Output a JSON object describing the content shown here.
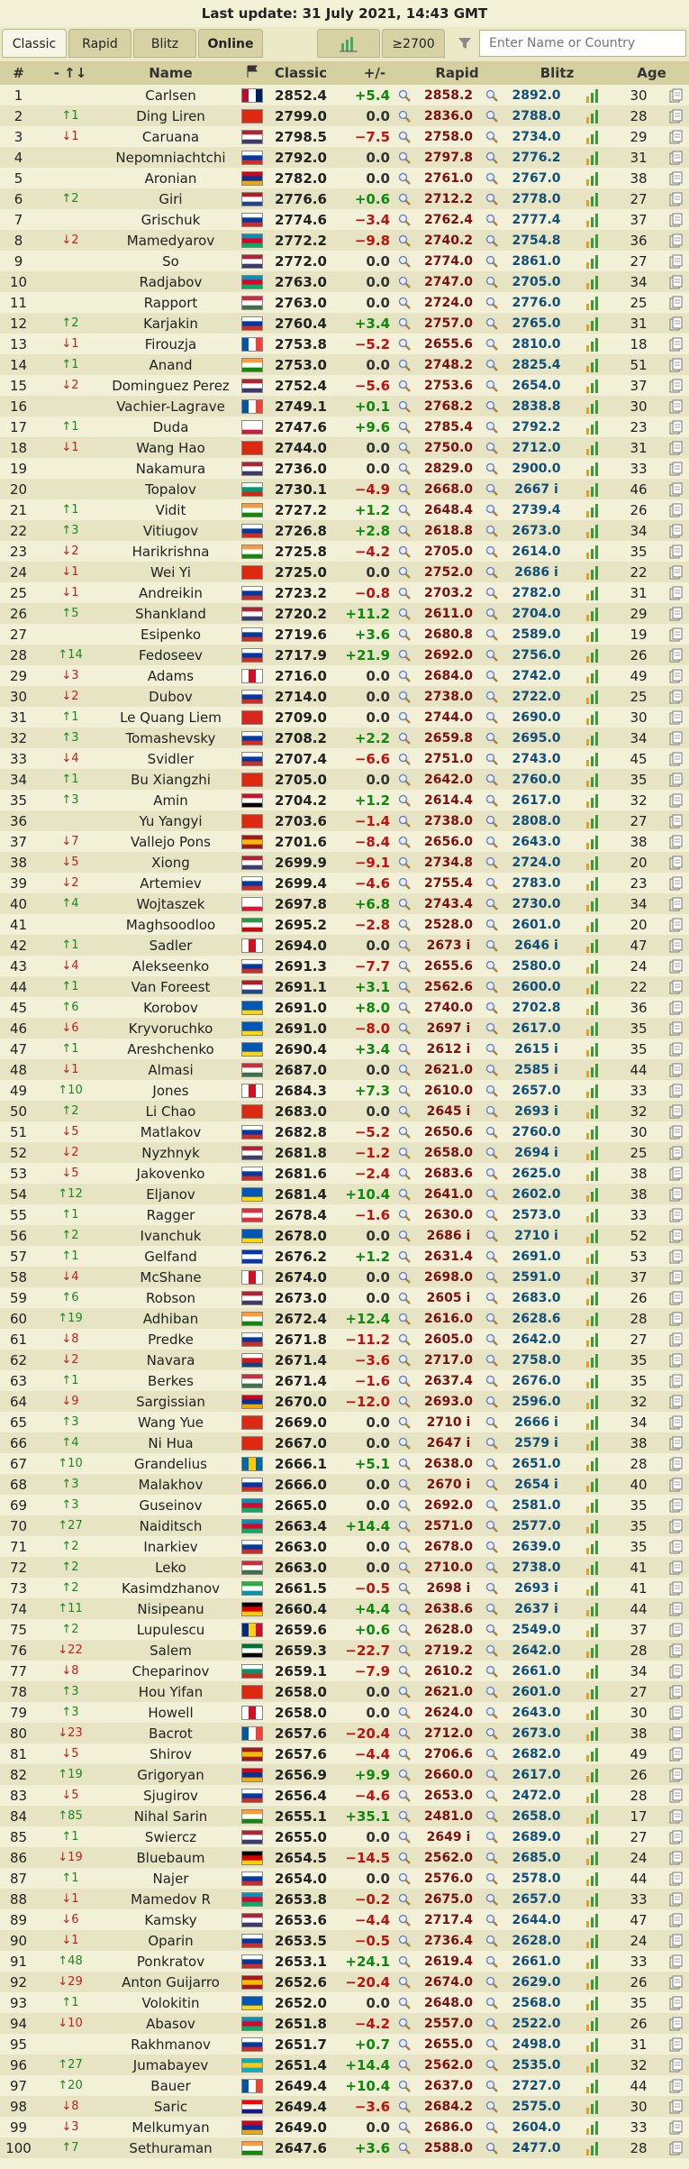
{
  "header": {
    "title": "Last update: 31 July 2021, 14:43 GMT",
    "tabs": [
      "Classic",
      "Rapid",
      "Blitz",
      "Online"
    ],
    "filter_button": "≥2700",
    "search_placeholder": "Enter Name or Country"
  },
  "table": {
    "columns": [
      "#",
      "- ↑↓",
      "Name",
      "Classic",
      "+/-",
      "Rapid",
      "Blitz",
      "Age"
    ],
    "rows": [
      [
        1,
        null,
        "Carlsen",
        "2852.4",
        "+5.4",
        "2858.2",
        "2892.0",
        30
      ],
      [
        2,
        "↑1",
        "Ding Liren",
        "2799.0",
        "0.0",
        "2836.0",
        "2788.0",
        28
      ],
      [
        3,
        "↓1",
        "Caruana",
        "2798.5",
        "−7.5",
        "2758.0",
        "2734.0",
        29
      ],
      [
        4,
        null,
        "Nepomniachtchi",
        "2792.0",
        "0.0",
        "2797.8",
        "2776.2",
        31
      ],
      [
        5,
        null,
        "Aronian",
        "2782.0",
        "0.0",
        "2761.0",
        "2767.0",
        38
      ],
      [
        6,
        "↑2",
        "Giri",
        "2776.6",
        "+0.6",
        "2712.2",
        "2778.0",
        27
      ],
      [
        7,
        null,
        "Grischuk",
        "2774.6",
        "−3.4",
        "2762.4",
        "2777.4",
        37
      ],
      [
        8,
        "↓2",
        "Mamedyarov",
        "2772.2",
        "−9.8",
        "2740.2",
        "2754.8",
        36
      ],
      [
        9,
        null,
        "So",
        "2772.0",
        "0.0",
        "2774.0",
        "2861.0",
        27
      ],
      [
        10,
        null,
        "Radjabov",
        "2763.0",
        "0.0",
        "2747.0",
        "2705.0",
        34
      ],
      [
        11,
        null,
        "Rapport",
        "2763.0",
        "0.0",
        "2724.0",
        "2776.0",
        25
      ],
      [
        12,
        "↑2",
        "Karjakin",
        "2760.4",
        "+3.4",
        "2757.0",
        "2765.0",
        31
      ],
      [
        13,
        "↓1",
        "Firouzja",
        "2753.8",
        "−5.2",
        "2655.6",
        "2810.0",
        18
      ],
      [
        14,
        "↑1",
        "Anand",
        "2753.0",
        "0.0",
        "2748.2",
        "2825.4",
        51
      ],
      [
        15,
        "↓2",
        "Dominguez Perez",
        "2752.4",
        "−5.6",
        "2753.6",
        "2654.0",
        37
      ],
      [
        16,
        null,
        "Vachier-Lagrave",
        "2749.1",
        "+0.1",
        "2768.2",
        "2838.8",
        30
      ],
      [
        17,
        "↑1",
        "Duda",
        "2747.6",
        "+9.6",
        "2785.4",
        "2792.2",
        23
      ],
      [
        18,
        "↓1",
        "Wang Hao",
        "2744.0",
        "0.0",
        "2750.0",
        "2712.0",
        31
      ],
      [
        19,
        null,
        "Nakamura",
        "2736.0",
        "0.0",
        "2829.0",
        "2900.0",
        33
      ],
      [
        20,
        null,
        "Topalov",
        "2730.1",
        "−4.9",
        "2668.0",
        "2667 i",
        46
      ],
      [
        21,
        "↑1",
        "Vidit",
        "2727.2",
        "+1.2",
        "2648.4",
        "2739.4",
        26
      ],
      [
        22,
        "↑3",
        "Vitiugov",
        "2726.8",
        "+2.8",
        "2618.8",
        "2673.0",
        34
      ],
      [
        23,
        "↓2",
        "Harikrishna",
        "2725.8",
        "−4.2",
        "2705.0",
        "2614.0",
        35
      ],
      [
        24,
        "↓1",
        "Wei Yi",
        "2725.0",
        "0.0",
        "2752.0",
        "2686 i",
        22
      ],
      [
        25,
        "↓1",
        "Andreikin",
        "2723.2",
        "−0.8",
        "2703.2",
        "2782.0",
        31
      ],
      [
        26,
        "↑5",
        "Shankland",
        "2720.2",
        "+11.2",
        "2611.0",
        "2704.0",
        29
      ],
      [
        27,
        null,
        "Esipenko",
        "2719.6",
        "+3.6",
        "2680.8",
        "2589.0",
        19
      ],
      [
        28,
        "↑14",
        "Fedoseev",
        "2717.9",
        "+21.9",
        "2692.0",
        "2756.0",
        26
      ],
      [
        29,
        "↓3",
        "Adams",
        "2716.0",
        "0.0",
        "2684.0",
        "2742.0",
        49
      ],
      [
        30,
        "↓2",
        "Dubov",
        "2714.0",
        "0.0",
        "2738.0",
        "2722.0",
        25
      ],
      [
        31,
        "↑1",
        "Le Quang Liem",
        "2709.0",
        "0.0",
        "2744.0",
        "2690.0",
        30
      ],
      [
        32,
        "↑3",
        "Tomashevsky",
        "2708.2",
        "+2.2",
        "2659.8",
        "2695.0",
        34
      ],
      [
        33,
        "↓4",
        "Svidler",
        "2707.4",
        "−6.6",
        "2751.0",
        "2743.0",
        45
      ],
      [
        34,
        "↑1",
        "Bu Xiangzhi",
        "2705.0",
        "0.0",
        "2642.0",
        "2760.0",
        35
      ],
      [
        35,
        "↑3",
        "Amin",
        "2704.2",
        "+1.2",
        "2614.4",
        "2617.0",
        32
      ],
      [
        36,
        null,
        "Yu Yangyi",
        "2703.6",
        "−1.4",
        "2738.0",
        "2808.0",
        27
      ],
      [
        37,
        "↓7",
        "Vallejo Pons",
        "2701.6",
        "−8.4",
        "2656.0",
        "2643.0",
        38
      ],
      [
        38,
        "↓5",
        "Xiong",
        "2699.9",
        "−9.1",
        "2734.8",
        "2724.0",
        20
      ],
      [
        39,
        "↓2",
        "Artemiev",
        "2699.4",
        "−4.6",
        "2755.4",
        "2783.0",
        23
      ],
      [
        40,
        "↑4",
        "Wojtaszek",
        "2697.8",
        "+6.8",
        "2743.4",
        "2730.0",
        34
      ],
      [
        41,
        null,
        "Maghsoodloo",
        "2695.2",
        "−2.8",
        "2528.0",
        "2601.0",
        20
      ],
      [
        42,
        "↑1",
        "Sadler",
        "2694.0",
        "0.0",
        "2673 i",
        "2646 i",
        47
      ],
      [
        43,
        "↓4",
        "Alekseenko",
        "2691.3",
        "−7.7",
        "2655.6",
        "2580.0",
        24
      ],
      [
        44,
        "↑1",
        "Van Foreest",
        "2691.1",
        "+3.1",
        "2562.6",
        "2600.0",
        22
      ],
      [
        45,
        "↑6",
        "Korobov",
        "2691.0",
        "+8.0",
        "2740.0",
        "2702.8",
        36
      ],
      [
        46,
        "↓6",
        "Kryvoruchko",
        "2691.0",
        "−8.0",
        "2697 i",
        "2617.0",
        35
      ],
      [
        47,
        "↑1",
        "Areshchenko",
        "2690.4",
        "+3.4",
        "2612 i",
        "2615 i",
        35
      ],
      [
        48,
        "↓1",
        "Almasi",
        "2687.0",
        "0.0",
        "2621.0",
        "2585 i",
        44
      ],
      [
        49,
        "↑10",
        "Jones",
        "2684.3",
        "+7.3",
        "2610.0",
        "2657.0",
        33
      ],
      [
        50,
        "↑2",
        "Li Chao",
        "2683.0",
        "0.0",
        "2645 i",
        "2693 i",
        32
      ],
      [
        51,
        "↓5",
        "Matlakov",
        "2682.8",
        "−5.2",
        "2650.6",
        "2760.0",
        30
      ],
      [
        52,
        "↓2",
        "Nyzhnyk",
        "2681.8",
        "−1.2",
        "2658.0",
        "2694 i",
        25
      ],
      [
        53,
        "↓5",
        "Jakovenko",
        "2681.6",
        "−2.4",
        "2683.6",
        "2625.0",
        38
      ],
      [
        54,
        "↑12",
        "Eljanov",
        "2681.4",
        "+10.4",
        "2641.0",
        "2602.0",
        38
      ],
      [
        55,
        "↑1",
        "Ragger",
        "2678.4",
        "−1.6",
        "2630.0",
        "2573.0",
        33
      ],
      [
        56,
        "↑2",
        "Ivanchuk",
        "2678.0",
        "0.0",
        "2686 i",
        "2710 i",
        52
      ],
      [
        57,
        "↑1",
        "Gelfand",
        "2676.2",
        "+1.2",
        "2631.4",
        "2691.0",
        53
      ],
      [
        58,
        "↓4",
        "McShane",
        "2674.0",
        "0.0",
        "2698.0",
        "2591.0",
        37
      ],
      [
        59,
        "↑6",
        "Robson",
        "2673.0",
        "0.0",
        "2605 i",
        "2683.0",
        26
      ],
      [
        60,
        "↑19",
        "Adhiban",
        "2672.4",
        "+12.4",
        "2616.0",
        "2628.6",
        28
      ],
      [
        61,
        "↓8",
        "Predke",
        "2671.8",
        "−11.2",
        "2605.0",
        "2642.0",
        27
      ],
      [
        62,
        "↓2",
        "Navara",
        "2671.4",
        "−3.6",
        "2717.0",
        "2758.0",
        35
      ],
      [
        63,
        "↑1",
        "Berkes",
        "2671.4",
        "−1.6",
        "2637.4",
        "2676.0",
        35
      ],
      [
        64,
        "↓9",
        "Sargissian",
        "2670.0",
        "−12.0",
        "2693.0",
        "2596.0",
        32
      ],
      [
        65,
        "↑3",
        "Wang Yue",
        "2669.0",
        "0.0",
        "2710 i",
        "2666 i",
        34
      ],
      [
        66,
        "↑4",
        "Ni Hua",
        "2667.0",
        "0.0",
        "2647 i",
        "2579 i",
        38
      ],
      [
        67,
        "↑10",
        "Grandelius",
        "2666.1",
        "+5.1",
        "2638.0",
        "2651.0",
        28
      ],
      [
        68,
        "↑3",
        "Malakhov",
        "2666.0",
        "0.0",
        "2670 i",
        "2654 i",
        40
      ],
      [
        69,
        "↑3",
        "Guseinov",
        "2665.0",
        "0.0",
        "2692.0",
        "2581.0",
        35
      ],
      [
        70,
        "↑27",
        "Naiditsch",
        "2663.4",
        "+14.4",
        "2571.0",
        "2577.0",
        35
      ],
      [
        71,
        "↑2",
        "Inarkiev",
        "2663.0",
        "0.0",
        "2678.0",
        "2639.0",
        35
      ],
      [
        72,
        "↑2",
        "Leko",
        "2663.0",
        "0.0",
        "2710.0",
        "2738.0",
        41
      ],
      [
        73,
        "↑2",
        "Kasimdzhanov",
        "2661.5",
        "−0.5",
        "2698 i",
        "2693 i",
        41
      ],
      [
        74,
        "↑11",
        "Nisipeanu",
        "2660.4",
        "+4.4",
        "2638.6",
        "2637 i",
        44
      ],
      [
        75,
        "↑2",
        "Lupulescu",
        "2659.6",
        "+0.6",
        "2628.0",
        "2549.0",
        37
      ],
      [
        76,
        "↓22",
        "Salem",
        "2659.3",
        "−22.7",
        "2719.2",
        "2642.0",
        28
      ],
      [
        77,
        "↓8",
        "Cheparinov",
        "2659.1",
        "−7.9",
        "2610.2",
        "2661.0",
        34
      ],
      [
        78,
        "↑3",
        "Hou Yifan",
        "2658.0",
        "0.0",
        "2621.0",
        "2601.0",
        27
      ],
      [
        79,
        "↑3",
        "Howell",
        "2658.0",
        "0.0",
        "2624.0",
        "2643.0",
        30
      ],
      [
        80,
        "↓23",
        "Bacrot",
        "2657.6",
        "−20.4",
        "2712.0",
        "2673.0",
        38
      ],
      [
        81,
        "↓5",
        "Shirov",
        "2657.6",
        "−4.4",
        "2706.6",
        "2682.0",
        49
      ],
      [
        82,
        "↑19",
        "Grigoryan",
        "2656.9",
        "+9.9",
        "2660.0",
        "2617.0",
        26
      ],
      [
        83,
        "↓5",
        "Sjugirov",
        "2656.4",
        "−4.6",
        "2653.0",
        "2472.0",
        28
      ],
      [
        84,
        "↑85",
        "Nihal Sarin",
        "2655.1",
        "+35.1",
        "2481.0",
        "2658.0",
        17
      ],
      [
        85,
        "↑1",
        "Swiercz",
        "2655.0",
        "0.0",
        "2649 i",
        "2689.0",
        27
      ],
      [
        86,
        "↓19",
        "Bluebaum",
        "2654.5",
        "−14.5",
        "2562.0",
        "2685.0",
        24
      ],
      [
        87,
        "↑1",
        "Najer",
        "2654.0",
        "0.0",
        "2576.0",
        "2578.0",
        44
      ],
      [
        88,
        "↓1",
        "Mamedov R",
        "2653.8",
        "−0.2",
        "2675.0",
        "2657.0",
        33
      ],
      [
        89,
        "↓6",
        "Kamsky",
        "2653.6",
        "−4.4",
        "2717.4",
        "2644.0",
        47
      ],
      [
        90,
        "↓1",
        "Oparin",
        "2653.5",
        "−0.5",
        "2736.4",
        "2628.0",
        24
      ],
      [
        91,
        "↑48",
        "Ponkratov",
        "2653.1",
        "+24.1",
        "2619.4",
        "2661.0",
        33
      ],
      [
        92,
        "↓29",
        "Anton Guijarro",
        "2652.6",
        "−20.4",
        "2674.0",
        "2629.0",
        26
      ],
      [
        93,
        "↑1",
        "Volokitin",
        "2652.0",
        "0.0",
        "2648.0",
        "2568.0",
        35
      ],
      [
        94,
        "↓10",
        "Abasov",
        "2651.8",
        "−4.2",
        "2557.0",
        "2522.0",
        26
      ],
      [
        95,
        null,
        "Rakhmanov",
        "2651.7",
        "+0.7",
        "2655.0",
        "2498.0",
        31
      ],
      [
        96,
        "↑27",
        "Jumabayev",
        "2651.4",
        "+14.4",
        "2562.0",
        "2535.0",
        32
      ],
      [
        97,
        "↑20",
        "Bauer",
        "2649.4",
        "+10.4",
        "2637.0",
        "2727.0",
        44
      ],
      [
        98,
        "↓8",
        "Saric",
        "2649.4",
        "−3.6",
        "2684.2",
        "2575.0",
        30
      ],
      [
        99,
        "↓3",
        "Melkumyan",
        "2649.0",
        "0.0",
        "2686.0",
        "2604.0",
        33
      ],
      [
        100,
        "↑7",
        "Sethuraman",
        "2647.6",
        "+3.6",
        "2588.0",
        "2477.0",
        28
      ]
    ]
  }
}
